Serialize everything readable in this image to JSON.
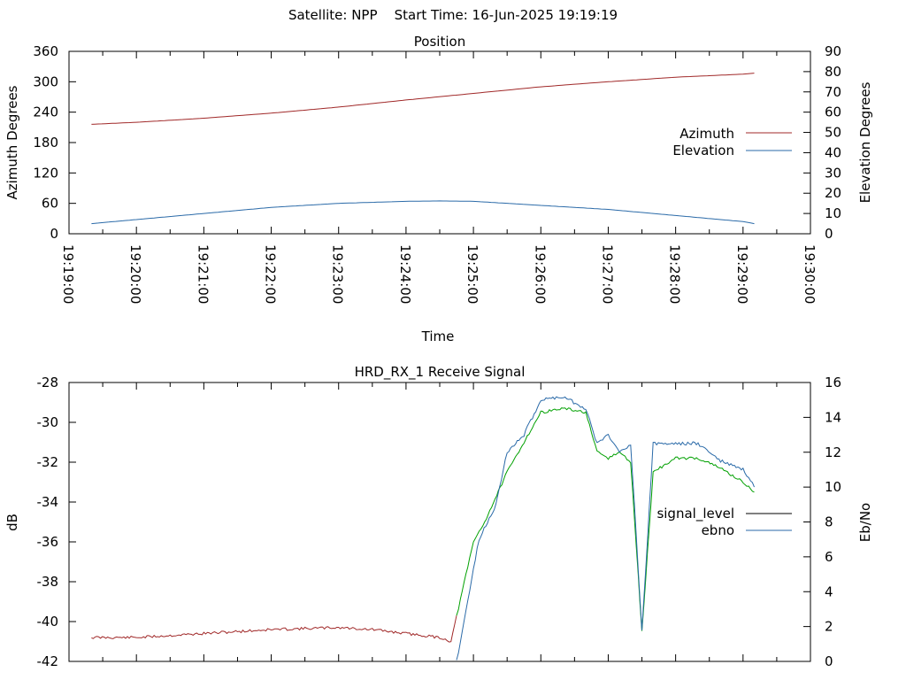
{
  "header": {
    "title": "Satellite: NPP    Start Time: 16-Jun-2025 19:19:19"
  },
  "colors": {
    "azimuth": "#a02828",
    "elevation": "#2a6aa8",
    "signal_level": "#a02828",
    "ebno_blue": "#2a6aa8",
    "ebno_green": "#00a000",
    "legend_signal": "#000000"
  },
  "chart_data": [
    {
      "type": "line",
      "title": "Position",
      "xlabel": "Time",
      "ylabel": "Azimuth Degrees",
      "y2label": "Elevation Degrees",
      "xlim": [
        "19:19:00",
        "19:30:00"
      ],
      "ylim": [
        0,
        360
      ],
      "y2lim": [
        0,
        90
      ],
      "xticks": [
        "19:19:00",
        "19:20:00",
        "19:21:00",
        "19:22:00",
        "19:23:00",
        "19:24:00",
        "19:25:00",
        "19:26:00",
        "19:27:00",
        "19:28:00",
        "19:29:00",
        "19:30:00"
      ],
      "yticks": [
        "0",
        "60",
        "120",
        "180",
        "240",
        "300",
        "360"
      ],
      "y2ticks": [
        "0",
        "10",
        "20",
        "30",
        "40",
        "50",
        "60",
        "70",
        "80",
        "90"
      ],
      "legend": {
        "position": "right"
      },
      "series": [
        {
          "name": "Azimuth",
          "axis": "left",
          "color": "#a02828",
          "x": [
            "19:19:20",
            "19:20:00",
            "19:21:00",
            "19:22:00",
            "19:23:00",
            "19:24:00",
            "19:25:00",
            "19:26:00",
            "19:27:00",
            "19:28:00",
            "19:29:00",
            "19:29:10"
          ],
          "values": [
            216,
            220,
            228,
            238,
            250,
            264,
            277,
            290,
            300,
            309,
            315,
            317
          ]
        },
        {
          "name": "Elevation",
          "axis": "right",
          "color": "#2a6aa8",
          "x": [
            "19:19:20",
            "19:20:00",
            "19:21:00",
            "19:22:00",
            "19:23:00",
            "19:24:00",
            "19:24:30",
            "19:25:00",
            "19:26:00",
            "19:27:00",
            "19:28:00",
            "19:29:00",
            "19:29:10"
          ],
          "values": [
            5,
            7,
            10,
            13,
            15,
            16,
            16.2,
            16,
            14,
            12,
            9,
            6,
            5
          ]
        }
      ]
    },
    {
      "type": "line",
      "title": "HRD_RX_1 Receive Signal",
      "xlabel": "",
      "ylabel": "dB",
      "y2label": "Eb/No",
      "xlim": [
        "19:19:00",
        "19:30:00"
      ],
      "ylim": [
        -42,
        -28
      ],
      "y2lim": [
        0,
        16
      ],
      "yticks": [
        "-28",
        "-30",
        "-32",
        "-34",
        "-36",
        "-38",
        "-40",
        "-42"
      ],
      "y2ticks": [
        "0",
        "2",
        "4",
        "6",
        "8",
        "10",
        "12",
        "14",
        "16"
      ],
      "legend": {
        "position": "right"
      },
      "series": [
        {
          "name": "signal_level",
          "axis": "left",
          "legend_color": "#000000",
          "x": [
            "19:19:20",
            "19:20:00",
            "19:21:00",
            "19:22:00",
            "19:23:00",
            "19:23:30",
            "19:24:00",
            "19:24:30",
            "19:24:40",
            "19:24:50",
            "19:25:00",
            "19:25:10",
            "19:25:30",
            "19:25:45",
            "19:26:00",
            "19:26:20",
            "19:26:40",
            "19:26:50",
            "19:27:00",
            "19:27:10",
            "19:27:20",
            "19:27:30",
            "19:27:40",
            "19:28:00",
            "19:28:20",
            "19:28:40",
            "19:29:00",
            "19:29:10"
          ],
          "values": [
            -40.8,
            -40.8,
            -40.6,
            -40.4,
            -40.3,
            -40.4,
            -40.6,
            -40.8,
            -41.0,
            -38.5,
            -36.0,
            -35.0,
            -32.5,
            -31.0,
            -29.5,
            -29.3,
            -29.5,
            -31.5,
            -31.8,
            -31.5,
            -32.0,
            -40.5,
            -32.5,
            -31.8,
            -31.8,
            -32.3,
            -33.0,
            -33.5
          ],
          "segments": [
            {
              "color": "#a02828",
              "from": "19:19:20",
              "to": "19:24:45"
            },
            {
              "color": "#00a000",
              "from": "19:24:45",
              "to": "19:29:10"
            }
          ]
        },
        {
          "name": "ebno",
          "axis": "right",
          "color": "#2a6aa8",
          "x": [
            "19:24:45",
            "19:24:55",
            "19:25:05",
            "19:25:20",
            "19:25:30",
            "19:25:45",
            "19:26:00",
            "19:26:20",
            "19:26:40",
            "19:26:50",
            "19:27:00",
            "19:27:10",
            "19:27:20",
            "19:27:30",
            "19:27:40",
            "19:28:00",
            "19:28:20",
            "19:28:40",
            "19:29:00",
            "19:29:10"
          ],
          "values": [
            0,
            3.5,
            7,
            9,
            12,
            13,
            15,
            15.2,
            14.5,
            12.5,
            13,
            12,
            12.5,
            1.7,
            12.5,
            12.5,
            12.5,
            11.5,
            11,
            10
          ]
        }
      ]
    }
  ]
}
